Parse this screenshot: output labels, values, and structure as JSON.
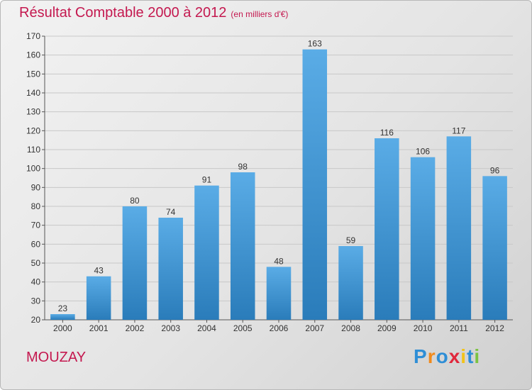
{
  "header": {
    "title": "Résultat Comptable 2000 à 2012",
    "subtitle": "(en milliers d'€)"
  },
  "footer": {
    "commune": "MOUZAY",
    "logo_text": "Proxiti",
    "logo_letters": [
      {
        "char": "P",
        "color": "#2e8ed6"
      },
      {
        "char": "r",
        "color": "#f08a1c"
      },
      {
        "char": "o",
        "color": "#2e8ed6"
      },
      {
        "char": "x",
        "color": "#e0283c"
      },
      {
        "char": "i",
        "color": "#f2c318"
      },
      {
        "char": "t",
        "color": "#2e8ed6"
      },
      {
        "char": "i",
        "color": "#7cc242"
      }
    ]
  },
  "colors": {
    "accent": "#c4184f",
    "bar_light": "#5aace6",
    "bar_dark": "#2a7cba"
  },
  "chart_data": {
    "type": "bar",
    "title": "Résultat Comptable 2000 à 2012",
    "subtitle": "(en milliers d'€)",
    "xlabel": "",
    "ylabel": "",
    "categories": [
      "2000",
      "2001",
      "2002",
      "2003",
      "2004",
      "2005",
      "2006",
      "2007",
      "2008",
      "2009",
      "2010",
      "2011",
      "2012"
    ],
    "values": [
      23,
      43,
      80,
      74,
      91,
      98,
      48,
      163,
      59,
      116,
      106,
      117,
      96
    ],
    "ylim": [
      20,
      170
    ],
    "yticks": [
      20,
      30,
      40,
      50,
      60,
      70,
      80,
      90,
      100,
      110,
      120,
      130,
      140,
      150,
      160,
      170
    ],
    "grid": true
  }
}
